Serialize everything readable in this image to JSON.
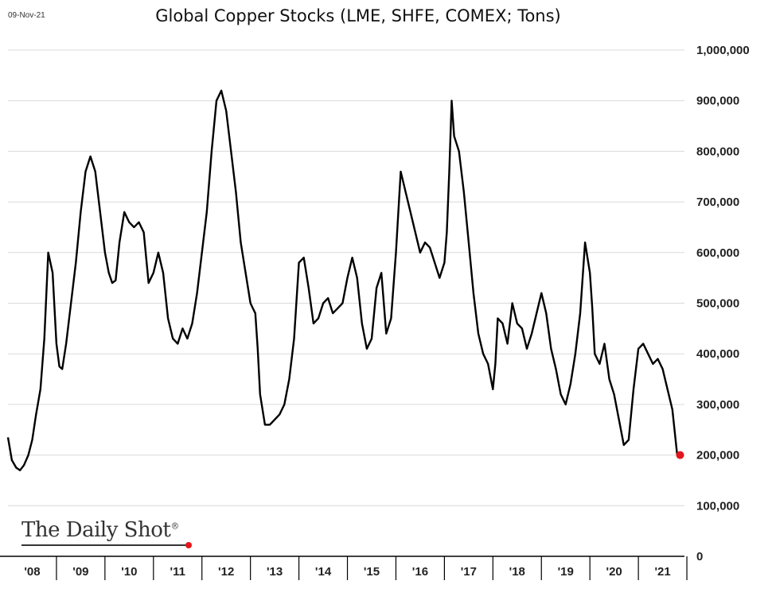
{
  "header": {
    "date_stamp": "09-Nov-21",
    "title": "Global Copper Stocks (LME, SHFE, COMEX; Tons)"
  },
  "branding": {
    "logo_text": "The Daily Shot",
    "logo_mark": "®"
  },
  "colors": {
    "line": "#000000",
    "end_marker": "#e3161d",
    "grid": "#d9d9d9"
  },
  "chart_data": {
    "type": "line",
    "title": "Global Copper Stocks (LME, SHFE, COMEX; Tons)",
    "xlabel": "",
    "ylabel": "",
    "ylim": [
      0,
      1000000
    ],
    "xlim": [
      2008.0,
      2021.95
    ],
    "grid": true,
    "y_ticks": [
      0,
      100000,
      200000,
      300000,
      400000,
      500000,
      600000,
      700000,
      800000,
      900000,
      1000000
    ],
    "y_tick_labels": [
      "0",
      "100,000",
      "200,000",
      "300,000",
      "400,000",
      "500,000",
      "600,000",
      "700,000",
      "800,000",
      "900,000",
      "1,000,000"
    ],
    "x_tick_labels": [
      "'08",
      "'09",
      "'10",
      "'11",
      "'12",
      "'13",
      "'14",
      "'15",
      "'16",
      "'17",
      "'18",
      "'19",
      "'20",
      "'21"
    ],
    "series": [
      {
        "x": [
          2008.0,
          2008.08,
          2008.17,
          2008.25,
          2008.33,
          2008.42,
          2008.5,
          2008.58,
          2008.67,
          2008.75,
          2008.83,
          2008.92,
          2009.0,
          2009.06,
          2009.12,
          2009.2,
          2009.3,
          2009.4,
          2009.5,
          2009.6,
          2009.7,
          2009.8,
          2009.9,
          2010.0,
          2010.08,
          2010.15,
          2010.22,
          2010.3,
          2010.4,
          2010.5,
          2010.6,
          2010.7,
          2010.8,
          2010.9,
          2011.0,
          2011.1,
          2011.2,
          2011.3,
          2011.4,
          2011.5,
          2011.6,
          2011.7,
          2011.8,
          2011.9,
          2012.0,
          2012.1,
          2012.2,
          2012.3,
          2012.4,
          2012.5,
          2012.6,
          2012.7,
          2012.8,
          2012.9,
          2013.0,
          2013.05,
          2013.1,
          2013.15,
          2013.2,
          2013.3,
          2013.4,
          2013.5,
          2013.6,
          2013.7,
          2013.8,
          2013.9,
          2014.0,
          2014.1,
          2014.2,
          2014.3,
          2014.4,
          2014.5,
          2014.6,
          2014.7,
          2014.8,
          2014.9,
          2015.0,
          2015.1,
          2015.2,
          2015.3,
          2015.4,
          2015.5,
          2015.6,
          2015.7,
          2015.8,
          2015.9,
          2016.0,
          2016.1,
          2016.2,
          2016.3,
          2016.4,
          2016.5,
          2016.6,
          2016.7,
          2016.8,
          2016.9,
          2017.0,
          2017.05,
          2017.1,
          2017.15,
          2017.2,
          2017.3,
          2017.4,
          2017.5,
          2017.6,
          2017.7,
          2017.8,
          2017.9,
          2018.0,
          2018.05,
          2018.1,
          2018.2,
          2018.3,
          2018.4,
          2018.5,
          2018.6,
          2018.7,
          2018.8,
          2018.9,
          2019.0,
          2019.1,
          2019.2,
          2019.3,
          2019.4,
          2019.5,
          2019.6,
          2019.7,
          2019.8,
          2019.9,
          2020.0,
          2020.05,
          2020.1,
          2020.2,
          2020.3,
          2020.4,
          2020.5,
          2020.6,
          2020.7,
          2020.8,
          2020.9,
          2021.0,
          2021.1,
          2021.2,
          2021.3,
          2021.4,
          2021.5,
          2021.6,
          2021.7,
          2021.8,
          2021.86
        ],
        "y": [
          235000,
          190000,
          175000,
          170000,
          180000,
          200000,
          230000,
          280000,
          330000,
          430000,
          600000,
          560000,
          420000,
          375000,
          370000,
          420000,
          500000,
          580000,
          680000,
          760000,
          790000,
          760000,
          680000,
          600000,
          560000,
          540000,
          545000,
          620000,
          680000,
          660000,
          650000,
          660000,
          640000,
          540000,
          560000,
          600000,
          560000,
          470000,
          430000,
          420000,
          450000,
          430000,
          460000,
          520000,
          600000,
          680000,
          800000,
          900000,
          920000,
          880000,
          800000,
          720000,
          620000,
          560000,
          500000,
          490000,
          480000,
          410000,
          320000,
          260000,
          260000,
          270000,
          280000,
          300000,
          350000,
          430000,
          580000,
          590000,
          530000,
          460000,
          470000,
          500000,
          510000,
          480000,
          490000,
          500000,
          550000,
          590000,
          550000,
          460000,
          410000,
          430000,
          530000,
          560000,
          440000,
          470000,
          600000,
          760000,
          720000,
          680000,
          640000,
          600000,
          620000,
          610000,
          580000,
          550000,
          580000,
          640000,
          760000,
          900000,
          830000,
          800000,
          720000,
          620000,
          520000,
          440000,
          400000,
          380000,
          330000,
          380000,
          470000,
          460000,
          420000,
          500000,
          460000,
          450000,
          410000,
          440000,
          480000,
          520000,
          480000,
          410000,
          370000,
          320000,
          300000,
          340000,
          400000,
          480000,
          620000,
          560000,
          490000,
          400000,
          380000,
          420000,
          350000,
          320000,
          270000,
          220000,
          230000,
          330000,
          410000,
          420000,
          400000,
          380000,
          390000,
          370000,
          330000,
          290000,
          200000,
          200000
        ]
      }
    ],
    "end_marker": {
      "x": 2021.86,
      "y": 200000
    }
  }
}
